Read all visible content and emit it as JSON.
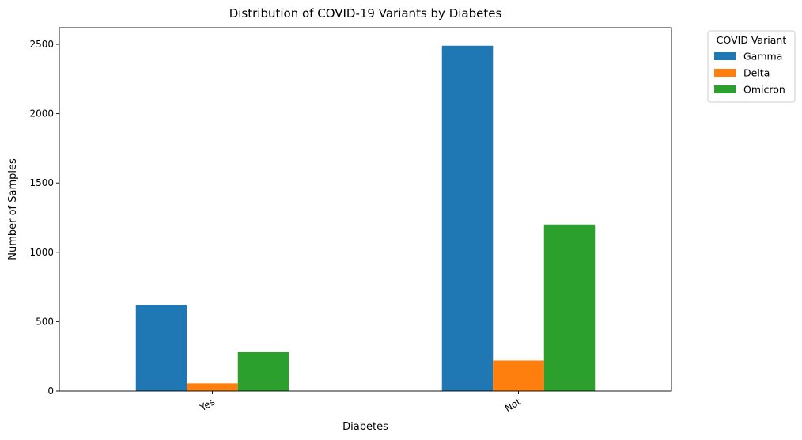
{
  "chart_data": {
    "type": "bar",
    "title": "Distribution of COVID-19 Variants by Diabetes",
    "xlabel": "Diabetes",
    "ylabel": "Number of Samples",
    "categories": [
      "Yes",
      "Not"
    ],
    "series": [
      {
        "name": "Gamma",
        "values": [
          620,
          2490
        ],
        "color": "#1f77b4"
      },
      {
        "name": "Delta",
        "values": [
          55,
          220
        ],
        "color": "#ff7f0e"
      },
      {
        "name": "Omicron",
        "values": [
          280,
          1200
        ],
        "color": "#2ca02c"
      }
    ],
    "ylim": [
      0,
      2620
    ],
    "yticks": [
      0,
      500,
      1000,
      1500,
      2000,
      2500
    ],
    "legend": {
      "title": "COVID Variant",
      "placement": "outside-top-right"
    },
    "grid": false
  }
}
